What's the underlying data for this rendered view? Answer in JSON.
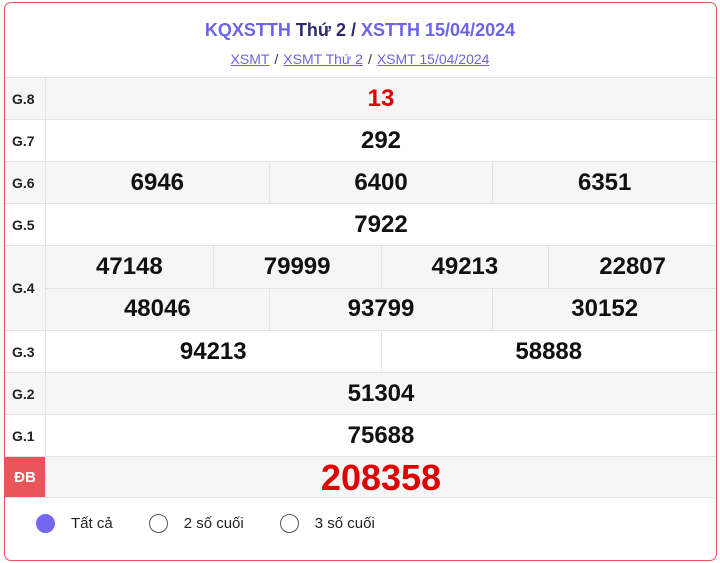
{
  "header": {
    "title_a": "KQXSTTH",
    "title_b": "Thứ 2",
    "title_sep": "/",
    "title_c": "XSTTH 15/04/2024"
  },
  "breadcrumb": [
    {
      "label": "XSMT"
    },
    {
      "label": "XSMT Thứ 2"
    },
    {
      "label": "XSMT 15/04/2024"
    }
  ],
  "breadcrumb_sep": "/",
  "prizes": {
    "g8": {
      "label": "G.8",
      "values": [
        "13"
      ]
    },
    "g7": {
      "label": "G.7",
      "values": [
        "292"
      ]
    },
    "g6": {
      "label": "G.6",
      "values": [
        "6946",
        "6400",
        "6351"
      ]
    },
    "g5": {
      "label": "G.5",
      "values": [
        "7922"
      ]
    },
    "g4": {
      "label": "G.4",
      "values": [
        "47148",
        "79999",
        "49213",
        "22807",
        "48046",
        "93799",
        "30152"
      ]
    },
    "g3": {
      "label": "G.3",
      "values": [
        "94213",
        "58888"
      ]
    },
    "g2": {
      "label": "G.2",
      "values": [
        "51304"
      ]
    },
    "g1": {
      "label": "G.1",
      "values": [
        "75688"
      ]
    },
    "db": {
      "label": "ĐB",
      "values": [
        "208358"
      ]
    }
  },
  "options": [
    {
      "label": "Tất cả",
      "selected": true
    },
    {
      "label": "2 số cuối",
      "selected": false
    },
    {
      "label": "3 số cuối",
      "selected": false
    }
  ],
  "colors": {
    "accent": "#6c63e8",
    "special": "#e00000",
    "border": "#e8555b"
  }
}
